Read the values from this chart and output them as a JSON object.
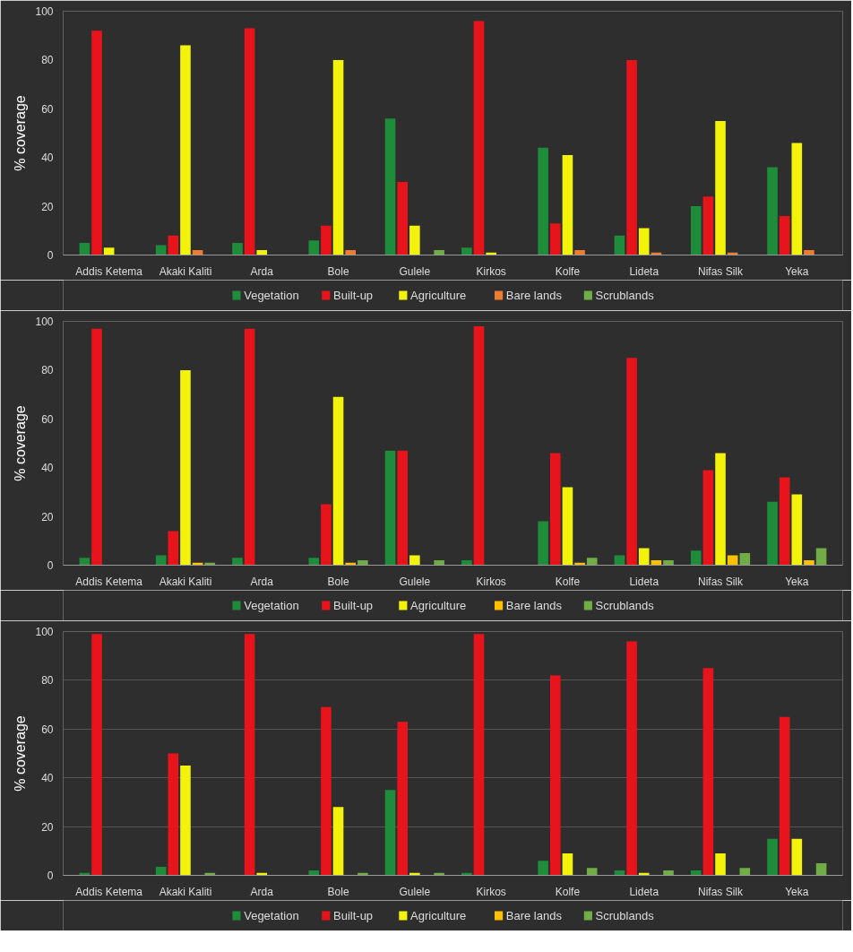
{
  "chart_data": [
    {
      "type": "bar",
      "ylabel": "% coverage",
      "categories": [
        "Addis Ketema",
        "Akaki Kaliti",
        "Arda",
        "Bole",
        "Gulele",
        "Kirkos",
        "Kolfe",
        "Lideta",
        "Nifas Silk",
        "Yeka"
      ],
      "ylim": [
        0,
        100
      ],
      "yticks": [
        0,
        20,
        40,
        60,
        80,
        100
      ],
      "legend": "bottom",
      "series": [
        {
          "name": "Vegetation",
          "color": "#1e8c3a",
          "values": [
            5,
            4,
            5,
            6,
            56,
            3,
            44,
            8,
            20,
            36
          ]
        },
        {
          "name": "Built-up",
          "color": "#e8141c",
          "values": [
            92,
            8,
            93,
            12,
            30,
            96,
            13,
            80,
            24,
            16
          ]
        },
        {
          "name": "Agriculture",
          "color": "#f2f20a",
          "values": [
            3,
            86,
            2,
            80,
            12,
            1,
            41,
            11,
            55,
            46
          ]
        },
        {
          "name": "Bare lands",
          "color": "#ed7d31",
          "values": [
            0,
            2,
            0,
            2,
            0,
            0,
            2,
            1,
            1,
            2
          ]
        },
        {
          "name": "Scrublands",
          "color": "#70ad47",
          "values": [
            0,
            0,
            0,
            0,
            2,
            0,
            0,
            0,
            0,
            0
          ]
        }
      ]
    },
    {
      "type": "bar",
      "ylabel": "% coverage",
      "categories": [
        "Addis Ketema",
        "Akaki Kaliti",
        "Arda",
        "Bole",
        "Gulele",
        "Kirkos",
        "Kolfe",
        "Lideta",
        "Nifas Silk",
        "Yeka"
      ],
      "ylim": [
        0,
        100
      ],
      "yticks": [
        0,
        20,
        40,
        60,
        80,
        100
      ],
      "legend": "bottom",
      "series": [
        {
          "name": "Vegetation",
          "color": "#1e8c3a",
          "values": [
            3,
            4,
            3,
            3,
            47,
            2,
            18,
            4,
            6,
            26
          ]
        },
        {
          "name": "Built-up",
          "color": "#e8141c",
          "values": [
            97,
            14,
            97,
            25,
            47,
            98,
            46,
            85,
            39,
            36
          ]
        },
        {
          "name": "Agriculture",
          "color": "#f2f20a",
          "values": [
            0,
            80,
            0,
            69,
            4,
            0,
            32,
            7,
            46,
            29
          ]
        },
        {
          "name": "Bare lands",
          "color": "#ffc000",
          "values": [
            0,
            1,
            0,
            1,
            0,
            0,
            1,
            2,
            4,
            2
          ]
        },
        {
          "name": "Scrublands",
          "color": "#70ad47",
          "values": [
            0,
            1,
            0,
            2,
            2,
            0,
            3,
            2,
            5,
            7
          ]
        }
      ]
    },
    {
      "type": "bar",
      "ylabel": "% coverage",
      "categories": [
        "Addis Ketema",
        "Akaki Kaliti",
        "Arda",
        "Bole",
        "Gulele",
        "Kirkos",
        "Kolfe",
        "Lideta",
        "Nifas Silk",
        "Yeka"
      ],
      "ylim": [
        0,
        100
      ],
      "yticks": [
        0,
        20,
        40,
        60,
        80,
        100
      ],
      "legend": "bottom",
      "grid": "y",
      "series": [
        {
          "name": "Vegetation",
          "color": "#1e8c3a",
          "values": [
            1,
            3.5,
            0,
            2,
            35,
            1,
            6,
            2,
            2,
            15
          ]
        },
        {
          "name": "Built-up",
          "color": "#e8141c",
          "values": [
            99,
            50,
            99,
            69,
            63,
            99,
            82,
            96,
            85,
            65
          ]
        },
        {
          "name": "Agriculture",
          "color": "#f2f20a",
          "values": [
            0,
            45,
            1,
            28,
            1,
            0,
            9,
            1,
            9,
            15
          ]
        },
        {
          "name": "Bare lands",
          "color": "#ffc000",
          "values": [
            0,
            0,
            0,
            0,
            0,
            0,
            0,
            0,
            0,
            0
          ]
        },
        {
          "name": "Scrublands",
          "color": "#70ad47",
          "values": [
            0,
            1,
            0,
            1,
            1,
            0,
            3,
            2,
            3,
            5
          ]
        }
      ]
    }
  ]
}
